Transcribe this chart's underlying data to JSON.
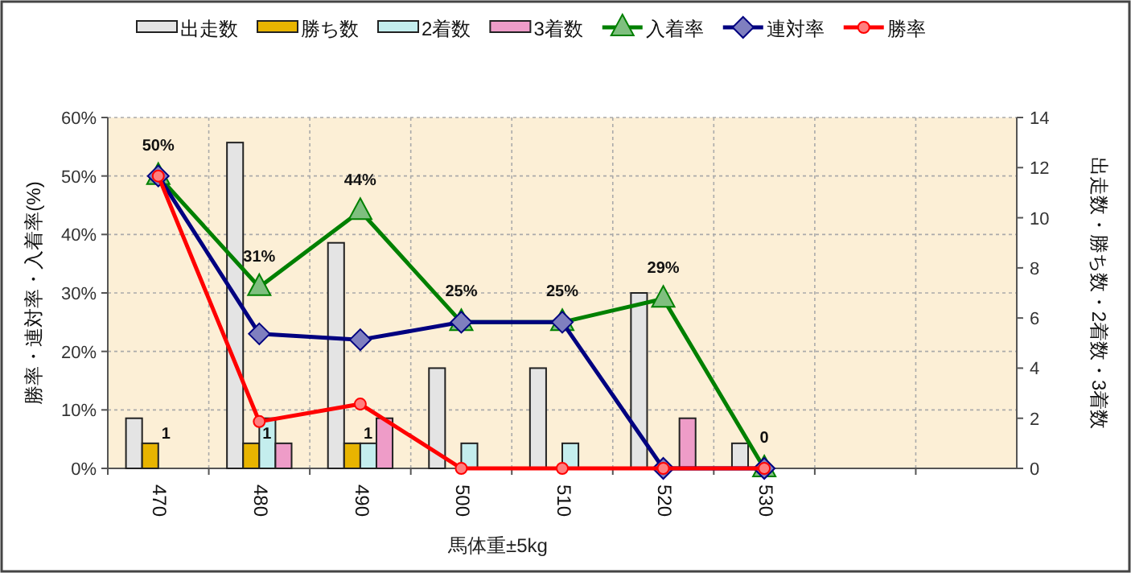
{
  "chart_data": {
    "type": "bar",
    "xlabel": "馬体重±5kg",
    "ylabel": "勝率・連対率・入着率(%)",
    "y2label": "出走数・勝ち数・2着数・3着数",
    "categories": [
      "470",
      "480",
      "490",
      "500",
      "510",
      "520",
      "530",
      null,
      null
    ],
    "series": [
      {
        "name": "出走数",
        "axis": "y2",
        "color": "#e4e4e4",
        "values": [
          2,
          13,
          9,
          4,
          4,
          7,
          1,
          null,
          null
        ]
      },
      {
        "name": "勝ち数",
        "axis": "y2",
        "color": "#e8b400",
        "values": [
          1,
          1,
          1,
          0,
          0,
          0,
          0,
          null,
          null
        ],
        "value_labels": [
          "1",
          "1",
          "1",
          null,
          null,
          null,
          null,
          null,
          null
        ]
      },
      {
        "name": "2着数",
        "axis": "y2",
        "color": "#c4eeee",
        "values": [
          0,
          2,
          1,
          1,
          1,
          0,
          0,
          null,
          null
        ]
      },
      {
        "name": "3着数",
        "axis": "y2",
        "color": "#ee9cc8",
        "values": [
          0,
          1,
          2,
          0,
          0,
          2,
          0,
          null,
          null
        ]
      },
      {
        "name": "入着率",
        "type": "line",
        "color": "#008000",
        "marker": "triangle",
        "values": [
          50,
          31,
          44,
          25,
          25,
          29,
          0,
          null,
          null
        ],
        "value_labels": [
          "50%",
          "31%",
          "44%",
          "25%",
          "25%",
          "29%",
          "0",
          null,
          null
        ]
      },
      {
        "name": "連対率",
        "type": "line",
        "color": "#000080",
        "marker": "diamond",
        "values": [
          50,
          23,
          22,
          25,
          25,
          0,
          0,
          null,
          null
        ]
      },
      {
        "name": "勝率",
        "type": "line",
        "color": "#ff0000",
        "marker": "circle",
        "values": [
          50,
          8,
          11,
          0,
          0,
          0,
          0,
          null,
          null
        ]
      }
    ],
    "ylim": [
      0,
      60
    ],
    "yticks": [
      {
        "value": 0,
        "label": "0%"
      },
      {
        "value": 10,
        "label": "10%"
      },
      {
        "value": 20,
        "label": "20%"
      },
      {
        "value": 30,
        "label": "30%"
      },
      {
        "value": 40,
        "label": "40%"
      },
      {
        "value": 50,
        "label": "50%"
      },
      {
        "value": 60,
        "label": "60%"
      }
    ],
    "y2lim": [
      0,
      14
    ],
    "y2ticks": [
      0,
      2,
      4,
      6,
      8,
      10,
      12,
      14
    ],
    "grid": true,
    "legend": "top",
    "line_style": "solid"
  }
}
